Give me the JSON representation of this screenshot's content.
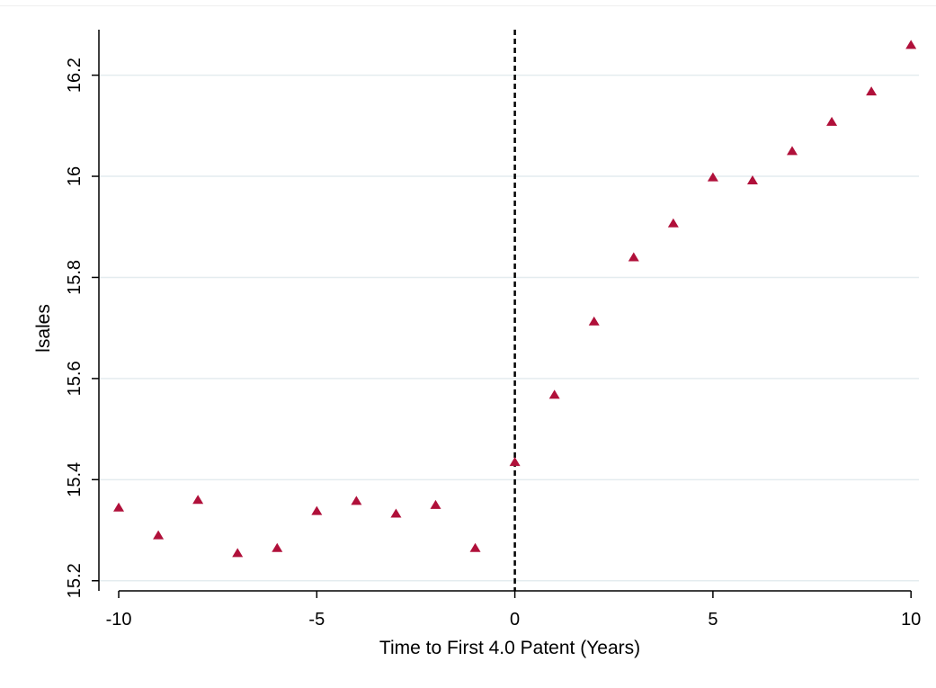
{
  "chart_data": {
    "type": "scatter",
    "title": "",
    "xlabel": "Time to First 4.0 Patent (Years)",
    "ylabel": "lsales",
    "xlim": [
      -10.5,
      10.2
    ],
    "ylim": [
      15.18,
      16.29
    ],
    "xticks": [
      -10,
      -5,
      0,
      5,
      10
    ],
    "yticks": [
      15.2,
      15.4,
      15.6,
      15.8,
      16.0,
      16.2
    ],
    "ytick_labels": [
      "15.2",
      "15.4",
      "15.6",
      "15.8",
      "16",
      "16.2"
    ],
    "grid": "horizontal",
    "reference_line": {
      "x": 0,
      "style": "dashed"
    },
    "marker": "triangle",
    "series": [
      {
        "x": [
          -10,
          -9,
          -8,
          -7,
          -6,
          -5,
          -4,
          -3,
          -2,
          -1,
          0,
          1,
          2,
          3,
          4,
          5,
          6,
          7,
          8,
          9,
          10
        ],
        "values": [
          15.345,
          15.29,
          15.36,
          15.255,
          15.265,
          15.338,
          15.358,
          15.333,
          15.35,
          15.265,
          15.435,
          15.568,
          15.713,
          15.84,
          15.907,
          15.998,
          15.992,
          16.05,
          16.108,
          16.168,
          16.26
        ],
        "color": "#b0103a"
      }
    ],
    "colors": {
      "grid": "#e4ecef",
      "axis": "#000000",
      "marker": "#b0103a"
    }
  }
}
